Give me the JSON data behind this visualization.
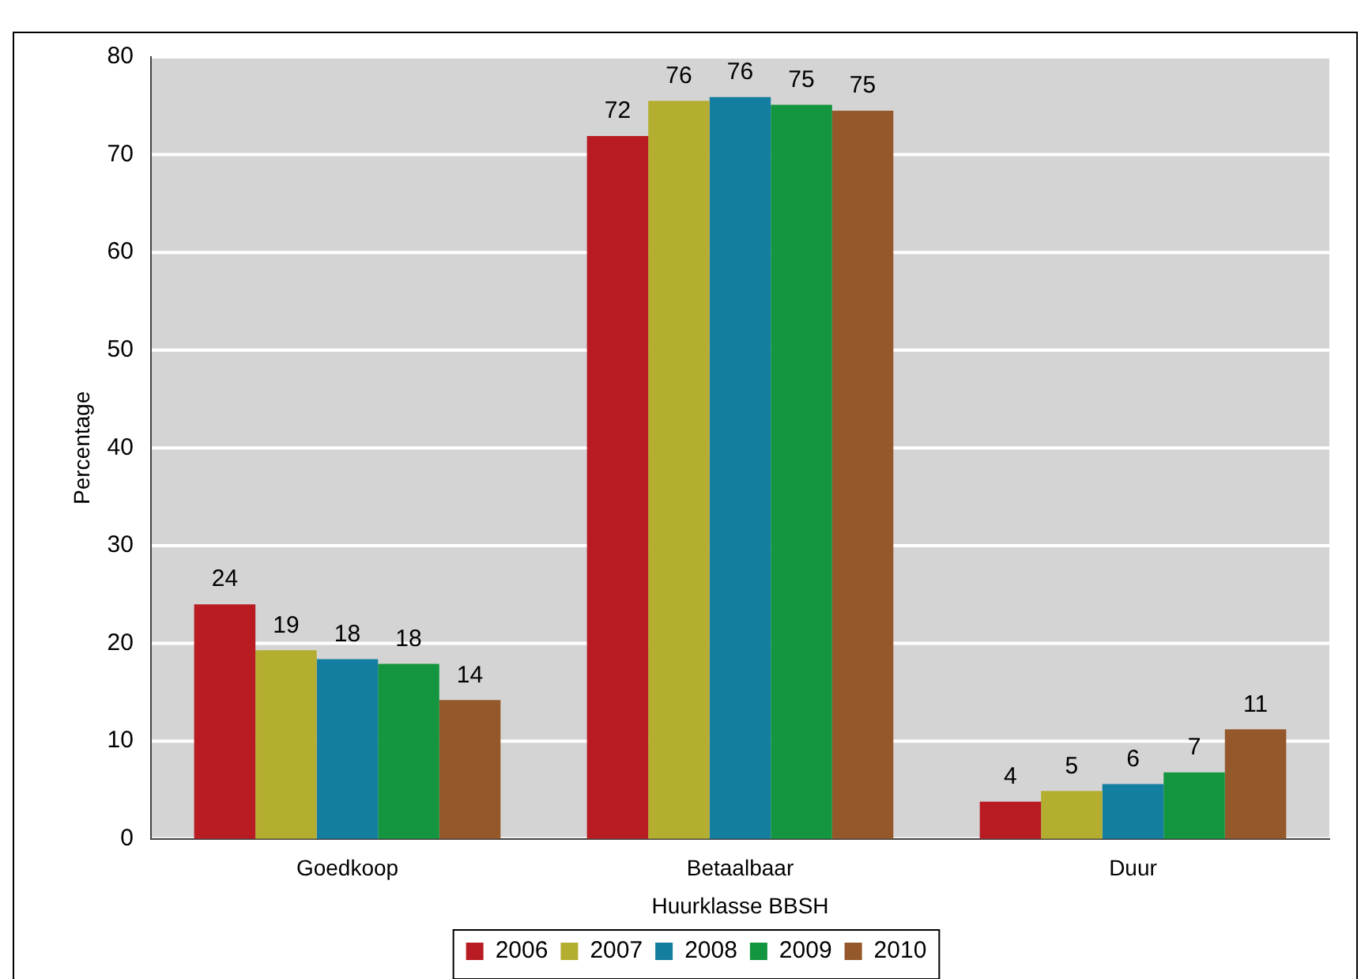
{
  "chart_data": {
    "type": "bar",
    "xlabel": "Huurklasse BBSH",
    "ylabel": "Percentage",
    "categories": [
      "Goedkoop",
      "Betaalbaar",
      "Duur"
    ],
    "series": [
      {
        "name": "2006",
        "color": "#b81c22",
        "values": [
          24,
          71.9,
          3.8
        ],
        "value_labels": [
          "24",
          "72",
          "4"
        ]
      },
      {
        "name": "2007",
        "color": "#b4ae30",
        "values": [
          19.3,
          75.5,
          4.9
        ],
        "value_labels": [
          "19",
          "76",
          "5"
        ]
      },
      {
        "name": "2008",
        "color": "#147ea0",
        "values": [
          18.4,
          75.9,
          5.6
        ],
        "value_labels": [
          "18",
          "76",
          "6"
        ]
      },
      {
        "name": "2009",
        "color": "#14953f",
        "values": [
          17.9,
          75.1,
          6.8
        ],
        "value_labels": [
          "18",
          "75",
          "7"
        ]
      },
      {
        "name": "2010",
        "color": "#94582a",
        "values": [
          14.2,
          74.5,
          11.2
        ],
        "value_labels": [
          "14",
          "75",
          "11"
        ]
      }
    ],
    "ylim": [
      0,
      80
    ],
    "yticks": [
      0,
      10,
      20,
      30,
      40,
      50,
      60,
      70,
      80
    ],
    "grid": "y",
    "legend": "bottom"
  }
}
